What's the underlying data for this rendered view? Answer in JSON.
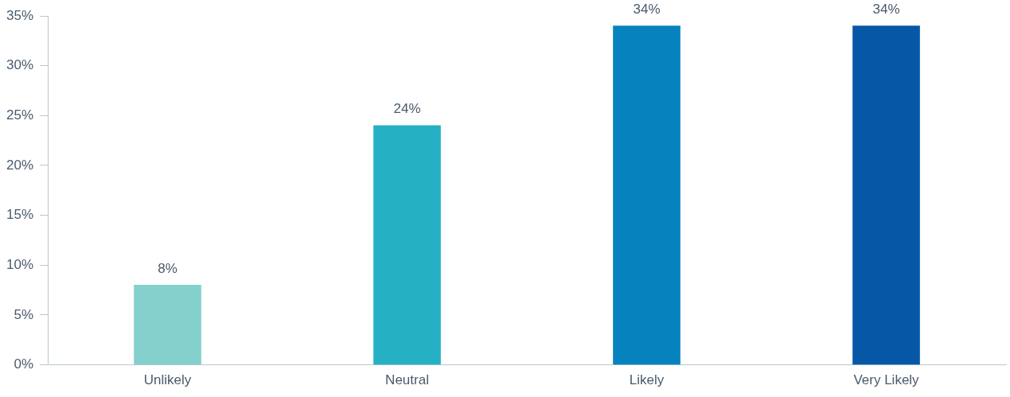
{
  "chart_data": {
    "type": "bar",
    "categories": [
      "Unlikely",
      "Neutral",
      "Likely",
      "Very Likely"
    ],
    "values": [
      8,
      24,
      34,
      34
    ],
    "colors": [
      "#84d0cc",
      "#25b0c3",
      "#0683bf",
      "#0757a7"
    ],
    "value_labels": [
      "8%",
      "24%",
      "34%",
      "34%"
    ],
    "ylim": [
      0,
      35
    ],
    "yticks": [
      {
        "value": 0,
        "label": "0%"
      },
      {
        "value": 5,
        "label": "5%"
      },
      {
        "value": 10,
        "label": "10%"
      },
      {
        "value": 15,
        "label": "15%"
      },
      {
        "value": 20,
        "label": "20%"
      },
      {
        "value": 25,
        "label": "25%"
      },
      {
        "value": 30,
        "label": "30%"
      },
      {
        "value": 35,
        "label": "35%"
      }
    ],
    "grid": false,
    "legend": false
  }
}
